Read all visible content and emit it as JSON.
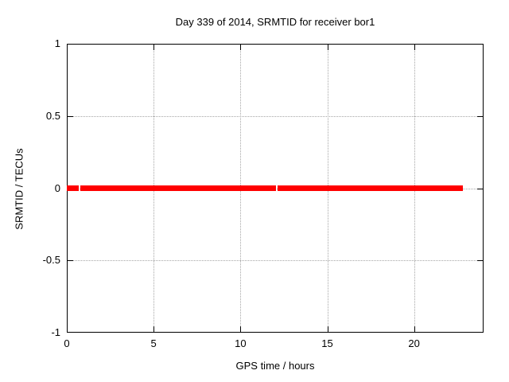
{
  "title": "Day 339 of 2014, SRMTID for receiver bor1",
  "axes": {
    "xlabel": "GPS time / hours",
    "ylabel": "SRMTID / TECUs"
  },
  "chart_data": {
    "type": "line",
    "title": "Day 339 of 2014, SRMTID for receiver bor1",
    "xlabel": "GPS time / hours",
    "ylabel": "SRMTID / TECUs",
    "xlim": [
      0,
      24
    ],
    "ylim": [
      -1,
      1
    ],
    "x_ticks": [
      0,
      5,
      10,
      15,
      20
    ],
    "x_tick_labels": [
      "0",
      "5",
      "10",
      "15",
      "20"
    ],
    "y_ticks": [
      -1,
      -0.5,
      0,
      0.5,
      1
    ],
    "y_tick_labels": [
      "-1",
      "-0.5",
      "0",
      "0.5",
      "1"
    ],
    "grid": true,
    "grid_style": "dotted",
    "legend": "none",
    "series": [
      {
        "name": "SRMTID",
        "value_tecus": 0,
        "color": "#ff0000",
        "line_thickness_px": 7,
        "segments_hours": [
          [
            0.0,
            0.7
          ],
          [
            0.78,
            12.03
          ],
          [
            12.12,
            22.8
          ]
        ],
        "description": "SRMTID stays at 0 TECUs across the day; thick red line at y=0 from hour 0 to about hour 22.8 with brief gaps near hours 0.74 and 12.07"
      }
    ],
    "colors": {
      "line": "#ff0000",
      "grid": "#a6a6a6",
      "border": "#000000",
      "text": "#000000",
      "background": "#ffffff"
    }
  }
}
